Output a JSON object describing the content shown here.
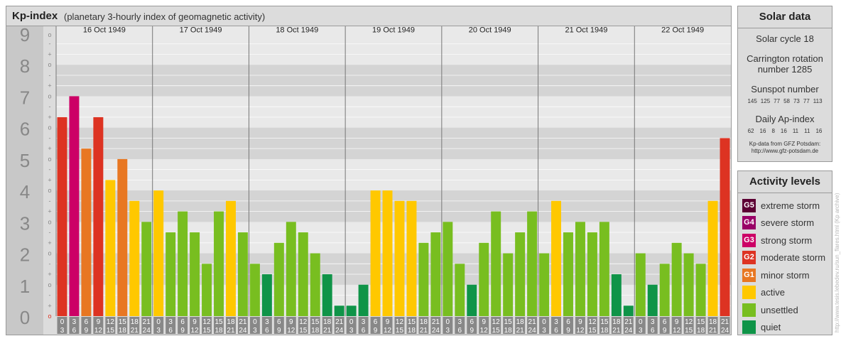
{
  "header": {
    "title": "Kp-index",
    "subtitle": "(planetary 3-hourly index of geomagnetic activity)"
  },
  "chart_data": {
    "type": "bar",
    "title": "Kp-index",
    "subtitle": "(planetary 3-hourly index of geomagnetic activity)",
    "ylim": [
      0,
      9
    ],
    "y_ticks": [
      "0",
      "1",
      "2",
      "3",
      "4",
      "5",
      "6",
      "7",
      "8",
      "9"
    ],
    "minor_y_ticks": [
      "o",
      "+",
      "-"
    ],
    "grid": true,
    "days": [
      "16 Oct 1949",
      "17 Oct 1949",
      "18 Oct 1949",
      "19 Oct 1949",
      "20 Oct 1949",
      "21 Oct 1949",
      "22 Oct 1949"
    ],
    "interval_starts": [
      "0",
      "3",
      "6",
      "9",
      "12",
      "15",
      "18",
      "21"
    ],
    "interval_ends": [
      "3",
      "6",
      "9",
      "12",
      "15",
      "18",
      "21",
      "24"
    ],
    "series": [
      {
        "values": [
          6.333,
          7.0,
          5.333,
          6.333,
          4.333,
          5.0,
          3.667,
          3.0,
          4.0,
          2.667,
          3.333,
          2.667,
          1.667,
          3.333,
          3.667,
          2.667,
          1.667,
          1.333,
          2.333,
          3.0,
          2.667,
          2.0,
          1.333,
          0.333,
          0.333,
          1.0,
          4.0,
          4.0,
          3.667,
          3.667,
          2.333,
          2.667,
          3.0,
          1.667,
          1.0,
          2.333,
          3.333,
          2.0,
          2.667,
          3.333,
          2.0,
          3.667,
          2.667,
          3.0,
          2.667,
          3.0,
          1.333,
          0.333,
          2.0,
          1.0,
          1.667,
          2.333,
          2.0,
          1.667,
          3.667,
          5.667
        ]
      }
    ]
  },
  "solar": {
    "heading": "Solar data",
    "cycle": "Solar cycle 18",
    "carrington_1": "Carrington rotation",
    "carrington_2": "number 1285",
    "sunspot_label": "Sunspot number",
    "sunspot_values": [
      "145",
      "125",
      "77",
      "58",
      "73",
      "77",
      "113"
    ],
    "ap_label": "Daily Ap-index",
    "ap_values": [
      "62",
      "16",
      "8",
      "16",
      "11",
      "11",
      "16"
    ],
    "credit_1": "Kp-data from GFZ Potsdam:",
    "credit_2": "http://www.gfz-potsdam.de"
  },
  "activity": {
    "heading": "Activity levels",
    "levels": [
      {
        "code": "G5",
        "label": "extreme storm",
        "color": "#5c0033"
      },
      {
        "code": "G4",
        "label": "severe storm",
        "color": "#990066"
      },
      {
        "code": "G3",
        "label": "strong storm",
        "color": "#cc0066"
      },
      {
        "code": "G2",
        "label": "moderate storm",
        "color": "#dd3322"
      },
      {
        "code": "G1",
        "label": "minor storm",
        "color": "#e87722"
      },
      {
        "code": "",
        "label": "active",
        "color": "#ffc800"
      },
      {
        "code": "",
        "label": "unsettled",
        "color": "#78be20"
      },
      {
        "code": "",
        "label": "quiet",
        "color": "#0f9448"
      }
    ]
  },
  "watermark": "http://www.tesis.lebedev.ru/sun_flares.html (Kp archive)"
}
